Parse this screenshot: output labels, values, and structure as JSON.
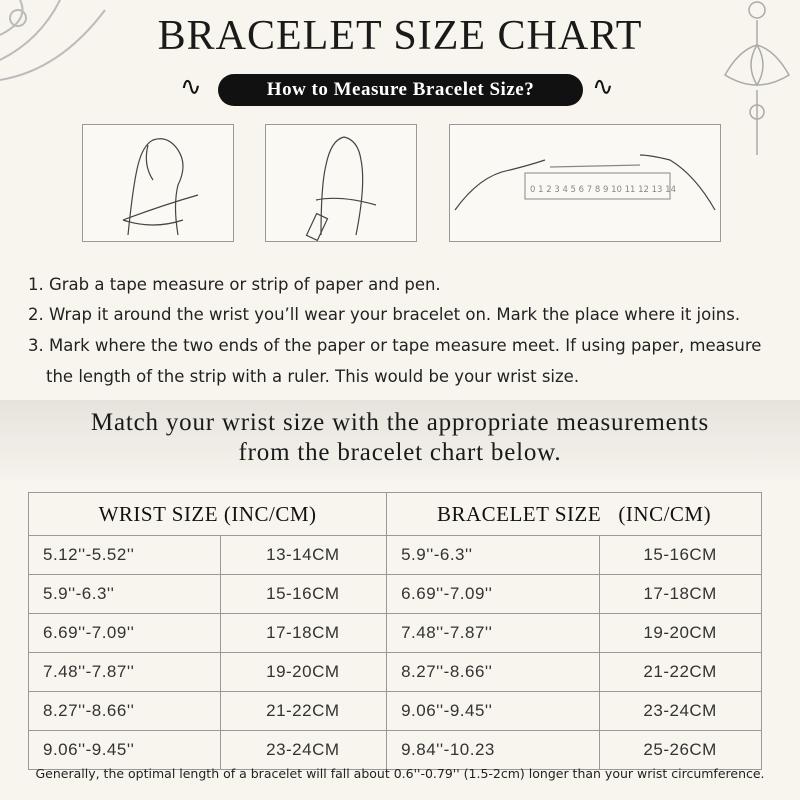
{
  "title": "BRACELET SIZE CHART",
  "subtitle": "How to Measure Bracelet Size?",
  "ruler_numbers": "0 1 2 3 4 5 6 7 8 9 10 11 12 13 14",
  "steps": [
    "1. Grab a tape measure or strip of paper and pen.",
    "2. Wrap it around the wrist you’ll wear your bracelet on. Mark the place where it joins.",
    "3. Mark where the two ends of the paper or tape measure meet. If using paper, measure",
    "the length of the strip with a ruler. This would be your wrist size."
  ],
  "band": {
    "line1": "Match your wrist size with the appropriate measurements",
    "line2": "from the bracelet chart below."
  },
  "table": {
    "headers": [
      "WRIST SIZE (INC/CM)",
      "BRACELET SIZE   (INC/CM)"
    ],
    "rows": [
      [
        "5.12''-5.52''",
        "13-14CM",
        "5.9''-6.3''",
        "15-16CM"
      ],
      [
        "5.9''-6.3''",
        "15-16CM",
        "6.69''-7.09''",
        "17-18CM"
      ],
      [
        "6.69''-7.09''",
        "17-18CM",
        "7.48''-7.87''",
        "19-20CM"
      ],
      [
        "7.48''-7.87''",
        "19-20CM",
        "8.27''-8.66''",
        "21-22CM"
      ],
      [
        "8.27''-8.66''",
        "21-22CM",
        "9.06''-9.45''",
        "23-24CM"
      ],
      [
        "9.06''-9.45''",
        "23-24CM",
        "9.84''-10.23",
        "25-26CM"
      ]
    ]
  },
  "footer": "Generally, the optimal length of a bracelet will fall about 0.6''-0.79'' (1.5-2cm) longer than your wrist circumference."
}
